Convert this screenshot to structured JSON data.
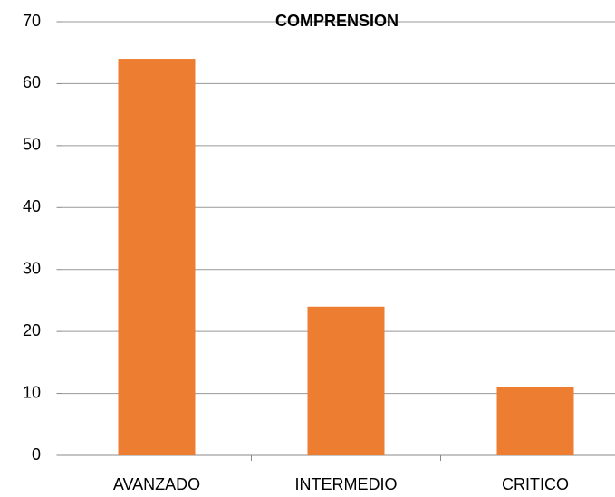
{
  "chart_data": {
    "type": "bar",
    "title": "COMPRENSION",
    "categories": [
      "AVANZADO",
      "INTERMEDIO",
      "CRITICO"
    ],
    "values": [
      64,
      24,
      11
    ],
    "color": "#ed7d31",
    "ylim": [
      0,
      70
    ],
    "yticks": [
      0,
      10,
      20,
      30,
      40,
      50,
      60,
      70
    ],
    "grid": true
  }
}
